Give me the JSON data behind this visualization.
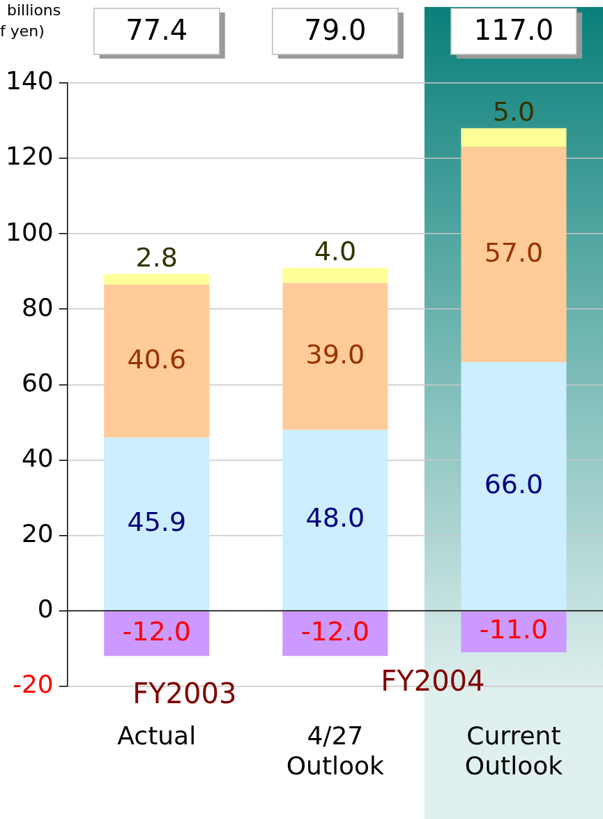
{
  "chart_data": {
    "type": "bar",
    "stacked": true,
    "ylabel": "billions\nf yen)",
    "categories": [
      "Actual",
      "4/27 Outlook",
      "Current Outlook"
    ],
    "series": [
      {
        "color": "#cceeff",
        "values": [
          45.9,
          48.0,
          66.0
        ],
        "value_labels": [
          "45.9",
          "48.0",
          "66.0"
        ]
      },
      {
        "color": "#ffcc99",
        "values": [
          40.6,
          39.0,
          57.0
        ],
        "value_labels": [
          "40.6",
          "39.0",
          "57.0"
        ]
      },
      {
        "color": "#ffff99",
        "values": [
          2.8,
          4.0,
          5.0
        ],
        "value_labels": [
          "2.8",
          "4.0",
          "5.0"
        ]
      },
      {
        "color": "#cc99ff",
        "values": [
          -12.0,
          -12.0,
          -11.0
        ],
        "value_labels": [
          "-12.0",
          "-12.0",
          "-11.0"
        ]
      }
    ],
    "ylim": [
      -20,
      140
    ],
    "yticks": [
      -20,
      0,
      20,
      40,
      60,
      80,
      100,
      120,
      140
    ],
    "grid": "y",
    "bands": [
      {
        "axis": "x",
        "from": "Current Outlook",
        "to": "Current Outlook",
        "color": "#0a807a"
      }
    ],
    "annotations": [
      "77.4",
      "79.0",
      "117.0",
      "FY2003",
      "FY2004"
    ]
  }
}
